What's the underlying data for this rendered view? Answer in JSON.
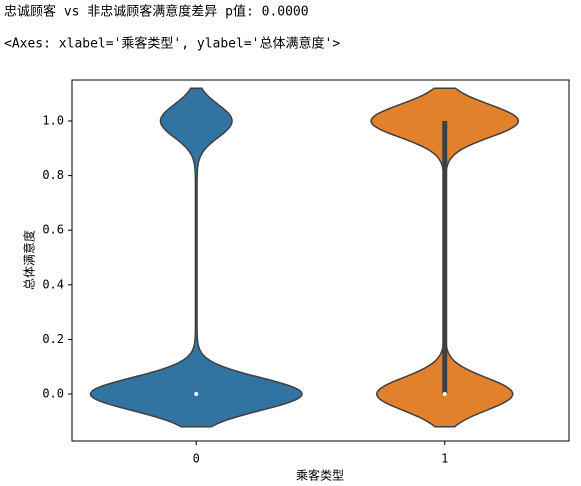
{
  "output": {
    "stdout": "忠诚顾客 vs 非忠诚顾客满意度差异 p值: 0.0000",
    "repr": "<Axes: xlabel='乘客类型', ylabel='总体满意度'>"
  },
  "chart_data": {
    "type": "violin",
    "xlabel": "乘客类型",
    "ylabel": "总体满意度",
    "categories": [
      "0",
      "1"
    ],
    "violins": [
      {
        "color": "#3274a1",
        "share_ones": 0.25,
        "q1": 0,
        "median": 0,
        "q3": 0
      },
      {
        "color": "#e1812c",
        "share_ones": 0.52,
        "q1": 0,
        "median": 0,
        "q3": 1
      }
    ],
    "ylim": [
      -0.172,
      1.15
    ],
    "yticks": [
      {
        "value": 0,
        "label": "0.0"
      },
      {
        "value": 0.2,
        "label": "0.2"
      },
      {
        "value": 0.4,
        "label": "0.4"
      },
      {
        "value": 0.6,
        "label": "0.6"
      },
      {
        "value": 0.8,
        "label": "0.8"
      },
      {
        "value": 1,
        "label": "1.0"
      }
    ]
  }
}
